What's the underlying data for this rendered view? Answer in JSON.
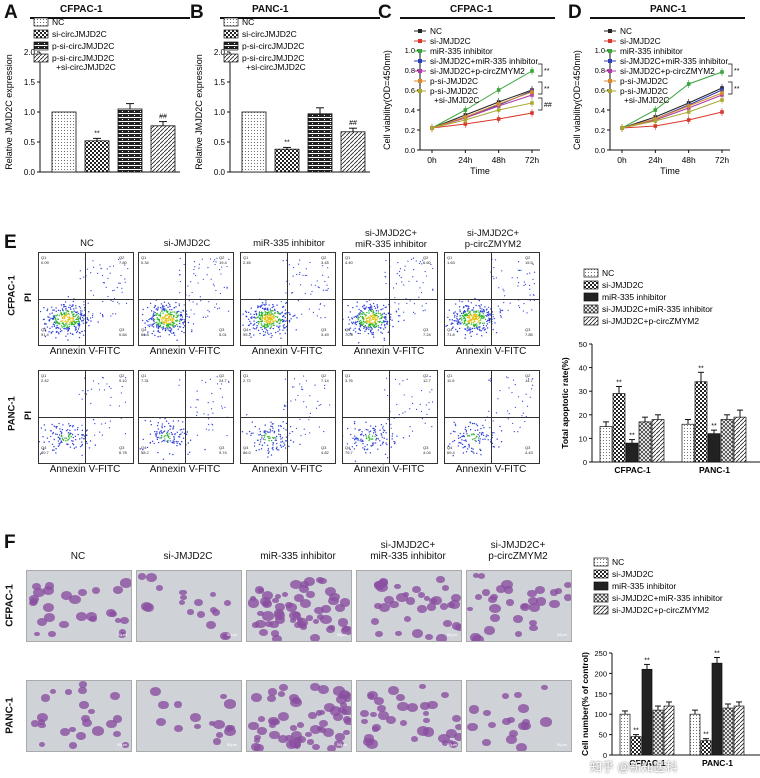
{
  "panels": {
    "A": {
      "letter": "A",
      "title": "CFPAC-1",
      "ylabel": "Relative JMJD2C expression",
      "legend": [
        "NC",
        "si-circJMJD2C",
        "p-si-circJMJD2C",
        "p-si-circJMJD2C\n+si-circJMJD2C"
      ],
      "sig": [
        "**",
        "##"
      ],
      "ticks": [
        "0.0",
        "0.5",
        "1.0",
        "1.5",
        "2.0"
      ]
    },
    "B": {
      "letter": "B",
      "title": "PANC-1",
      "ylabel": "Relative JMJD2C expression",
      "legend": [
        "NC",
        "si-circJMJD2C",
        "p-si-circJMJD2C",
        "p-si-circJMJD2C\n+si-circJMJD2C"
      ],
      "sig": [
        "**",
        "##"
      ],
      "ticks": [
        "0.0",
        "0.5",
        "1.0",
        "1.5",
        "2.0"
      ]
    },
    "C": {
      "letter": "C",
      "title": "CFPAC-1",
      "ylabel": "Cell viability(OD=450nm)",
      "xlabel": "Time",
      "legend": [
        "NC",
        "si-JMJD2C",
        "miR-335 inhibitor",
        "si-JMJD2C+miR-335 inhibitor",
        "si-JMJD2C+p-circZMYM2",
        "p-si-JMJD2C",
        "p-si-JMJD2C +si-JMJD2C"
      ],
      "sig": [
        "**",
        "**",
        "##"
      ],
      "ticks": [
        "0.0",
        "0.2",
        "0.4",
        "0.6",
        "0.8",
        "1.0"
      ],
      "xticks": [
        "0h",
        "24h",
        "48h",
        "72h"
      ]
    },
    "D": {
      "letter": "D",
      "title": "PANC-1",
      "ylabel": "Cell viability(OD=450nm)",
      "xlabel": "Time",
      "legend": [
        "NC",
        "si-JMJD2C",
        "miR-335 inhibitor",
        "si-JMJD2C+miR-335 inhibitor",
        "si-JMJD2C+p-circZMYM2",
        "p-si-JMJD2C",
        "p-si-JMJD2C +si-JMJD2C"
      ],
      "sig": [
        "**",
        "**"
      ],
      "ticks": [
        "0.0",
        "0.2",
        "0.4",
        "0.6",
        "0.8",
        "1.0"
      ],
      "xticks": [
        "0h",
        "24h",
        "48h",
        "72h"
      ]
    },
    "E": {
      "letter": "E",
      "rowlabels": [
        "CFPAC-1",
        "PANC-1"
      ],
      "ylabel_pi": "PI",
      "xlabel": "Annexin V-FITC",
      "columns": [
        "NC",
        "si-JMJD2C",
        "miR-335 inhibitor",
        "si-JMJD2C+\nmiR-335 inhibitor",
        "si-JMJD2C+\np-circZMYM2"
      ],
      "quad_top": [
        [
          "Q1\n0.09",
          "Q2\n7.80",
          "Q4\n91.4",
          "Q3\n0.84"
        ],
        [
          "Q1\n0.34",
          "Q2\n19.4",
          "Q4\n66.8",
          "Q3\n5.01"
        ],
        [
          "Q1\n2.45",
          "Q2\n3.45",
          "Q4\n95.2",
          "Q3\n3.49"
        ],
        [
          "Q1\n4.40",
          "Q2\n6.60",
          "Q4\n70.6",
          "Q3\n7.24"
        ],
        [
          "Q1\n1.63",
          "Q2\n15.5",
          "Q4\n71.8",
          "Q3\n7.85"
        ]
      ],
      "quad_bottom": [
        [
          "Q1\n2.42",
          "Q2\n9.10",
          "Q4\n80.7",
          "Q3\n6.78"
        ],
        [
          "Q1\n7.31",
          "Q2\n24.7",
          "Q4\n58.2",
          "Q3\n9.74"
        ],
        [
          "Q1\n2.72",
          "Q2\n7.14",
          "Q4\n86.0",
          "Q3\n4.82"
        ],
        [
          "Q1\n3.76",
          "Q2\n12.7",
          "Q4\n79.7",
          "Q3\n4.04"
        ],
        [
          "Q1\n11.5",
          "Q2\n14.7",
          "Q4\n69.4",
          "Q3\n4.43"
        ]
      ],
      "bar_ylabel": "Total apoptotic rate(%)",
      "bar_ticks": [
        "0",
        "10",
        "20",
        "30",
        "40",
        "50"
      ],
      "bar_groups": [
        "CFPAC-1",
        "PANC-1"
      ],
      "legend": [
        "NC",
        "si-JMJD2C",
        "miR-335 inhibitor",
        "si-JMJD2C+miR-335 inhibitor",
        "si-JMJD2C+p-circZMYM2"
      ],
      "sig": [
        "**",
        "**",
        "**",
        "**"
      ]
    },
    "F": {
      "letter": "F",
      "rowlabels": [
        "CFPAC-1",
        "PANC-1"
      ],
      "columns": [
        "NC",
        "si-JMJD2C",
        "miR-335 inhibitor",
        "si-JMJD2C+\nmiR-335 inhibitor",
        "si-JMJD2C+\np-circZMYM2"
      ],
      "scale": "50μm",
      "bar_ylabel": "Cell number(% of control)",
      "bar_ticks": [
        "0",
        "50",
        "100",
        "150",
        "200",
        "250"
      ],
      "bar_groups": [
        "CFPAC-1",
        "PANC-1"
      ],
      "legend": [
        "NC",
        "si-JMJD2C",
        "miR-335 inhibitor",
        "si-JMJD2C+miR-335 inhibitor",
        "si-JMJD2C+p-circZMYM2"
      ],
      "sig": [
        "**",
        "**",
        "**",
        "**"
      ],
      "watermark": "知乎 @新知医科"
    }
  },
  "chart_data": [
    {
      "type": "bar",
      "panel": "A",
      "title": "CFPAC-1",
      "ylabel": "Relative JMJD2C expression",
      "ylim": [
        0,
        2.0
      ],
      "categories": [
        "NC",
        "si-circJMJD2C",
        "p-si-circJMJD2C",
        "p-si-circJMJD2C+si-circJMJD2C"
      ],
      "values": [
        1.0,
        0.52,
        1.05,
        0.77
      ],
      "errors": [
        0,
        0.04,
        0.09,
        0.07
      ]
    },
    {
      "type": "bar",
      "panel": "B",
      "title": "PANC-1",
      "ylabel": "Relative JMJD2C expression",
      "ylim": [
        0,
        2.0
      ],
      "categories": [
        "NC",
        "si-circJMJD2C",
        "p-si-circJMJD2C",
        "p-si-circJMJD2C+si-circJMJD2C"
      ],
      "values": [
        1.0,
        0.38,
        0.97,
        0.67
      ],
      "errors": [
        0,
        0.03,
        0.1,
        0.06
      ]
    },
    {
      "type": "line",
      "panel": "C",
      "title": "CFPAC-1",
      "ylabel": "Cell viability(OD=450nm)",
      "xlabel": "Time",
      "ylim": [
        0,
        1.0
      ],
      "x": [
        "0h",
        "24h",
        "48h",
        "72h"
      ],
      "series": [
        {
          "name": "NC",
          "values": [
            0.22,
            0.35,
            0.48,
            0.6
          ],
          "color": "#222222"
        },
        {
          "name": "si-JMJD2C",
          "values": [
            0.22,
            0.26,
            0.31,
            0.37
          ],
          "color": "#d9372b"
        },
        {
          "name": "miR-335 inhibitor",
          "values": [
            0.22,
            0.4,
            0.6,
            0.79
          ],
          "color": "#3aa33a"
        },
        {
          "name": "si-JMJD2C+miR-335 inhibitor",
          "values": [
            0.22,
            0.33,
            0.45,
            0.59
          ],
          "color": "#2b3fb5"
        },
        {
          "name": "si-JMJD2C+p-circZMYM2",
          "values": [
            0.22,
            0.32,
            0.44,
            0.55
          ],
          "color": "#b03aa8"
        },
        {
          "name": "p-si-JMJD2C",
          "values": [
            0.22,
            0.33,
            0.46,
            0.58
          ],
          "color": "#d98a2b"
        },
        {
          "name": "p-si-JMJD2C +si-JMJD2C",
          "values": [
            0.22,
            0.3,
            0.4,
            0.47
          ],
          "color": "#aaaa33"
        }
      ]
    },
    {
      "type": "line",
      "panel": "D",
      "title": "PANC-1",
      "ylabel": "Cell viability(OD=450nm)",
      "xlabel": "Time",
      "ylim": [
        0,
        1.0
      ],
      "x": [
        "0h",
        "24h",
        "48h",
        "72h"
      ],
      "series": [
        {
          "name": "NC",
          "values": [
            0.22,
            0.33,
            0.47,
            0.62
          ],
          "color": "#222222"
        },
        {
          "name": "si-JMJD2C",
          "values": [
            0.22,
            0.24,
            0.3,
            0.38
          ],
          "color": "#d9372b"
        },
        {
          "name": "miR-335 inhibitor",
          "values": [
            0.22,
            0.4,
            0.66,
            0.78
          ],
          "color": "#3aa33a"
        },
        {
          "name": "si-JMJD2C+miR-335 inhibitor",
          "values": [
            0.22,
            0.31,
            0.45,
            0.6
          ],
          "color": "#2b3fb5"
        },
        {
          "name": "si-JMJD2C+p-circZMYM2",
          "values": [
            0.22,
            0.3,
            0.42,
            0.55
          ],
          "color": "#b03aa8"
        },
        {
          "name": "p-si-JMJD2C",
          "values": [
            0.22,
            0.31,
            0.44,
            0.57
          ],
          "color": "#d98a2b"
        },
        {
          "name": "p-si-JMJD2C +si-JMJD2C",
          "values": [
            0.22,
            0.29,
            0.38,
            0.5
          ],
          "color": "#aaaa33"
        }
      ]
    },
    {
      "type": "bar",
      "panel": "E",
      "ylabel": "Total apoptotic rate(%)",
      "ylim": [
        0,
        50
      ],
      "categories": [
        "CFPAC-1",
        "PANC-1"
      ],
      "series": [
        {
          "name": "NC",
          "values": [
            15,
            16
          ],
          "errors": [
            2,
            2
          ]
        },
        {
          "name": "si-JMJD2C",
          "values": [
            29,
            34
          ],
          "errors": [
            3,
            4
          ]
        },
        {
          "name": "miR-335 inhibitor",
          "values": [
            8,
            12
          ],
          "errors": [
            1.5,
            1.5
          ]
        },
        {
          "name": "si-JMJD2C+miR-335 inhibitor",
          "values": [
            17,
            18
          ],
          "errors": [
            2,
            2
          ]
        },
        {
          "name": "si-JMJD2C+p-circZMYM2",
          "values": [
            18,
            19
          ],
          "errors": [
            2,
            3
          ]
        }
      ]
    },
    {
      "type": "bar",
      "panel": "F",
      "ylabel": "Cell number(% of control)",
      "ylim": [
        0,
        250
      ],
      "categories": [
        "CFPAC-1",
        "PANC-1"
      ],
      "series": [
        {
          "name": "NC",
          "values": [
            100,
            100
          ],
          "errors": [
            8,
            10
          ]
        },
        {
          "name": "si-JMJD2C",
          "values": [
            45,
            35
          ],
          "errors": [
            5,
            5
          ]
        },
        {
          "name": "miR-335 inhibitor",
          "values": [
            210,
            225
          ],
          "errors": [
            12,
            14
          ]
        },
        {
          "name": "si-JMJD2C+miR-335 inhibitor",
          "values": [
            110,
            115
          ],
          "errors": [
            10,
            10
          ]
        },
        {
          "name": "si-JMJD2C+p-circZMYM2",
          "values": [
            120,
            120
          ],
          "errors": [
            10,
            10
          ]
        }
      ]
    }
  ]
}
